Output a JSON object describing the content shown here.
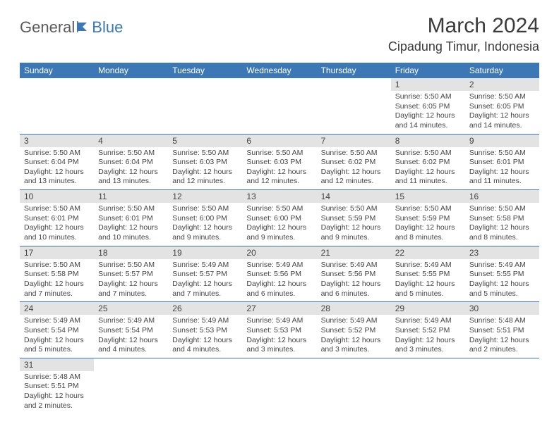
{
  "logo": {
    "text1": "General",
    "text2": "Blue"
  },
  "title": "March 2024",
  "location": "Cipadung Timur, Indonesia",
  "colors": {
    "header_bg": "#3b78b5",
    "header_text": "#ffffff",
    "daynum_bg": "#e3e3e3",
    "border": "#3b78b5",
    "body_text": "#444444",
    "page_bg": "#ffffff"
  },
  "weekdays": [
    "Sunday",
    "Monday",
    "Tuesday",
    "Wednesday",
    "Thursday",
    "Friday",
    "Saturday"
  ],
  "cell_fontsize": 10.5,
  "header_fontsize": 12,
  "title_fontsize": 30,
  "location_fontsize": 18,
  "weeks": [
    [
      null,
      null,
      null,
      null,
      null,
      {
        "n": "1",
        "sunrise": "Sunrise: 5:50 AM",
        "sunset": "Sunset: 6:05 PM",
        "day1": "Daylight: 12 hours",
        "day2": "and 14 minutes."
      },
      {
        "n": "2",
        "sunrise": "Sunrise: 5:50 AM",
        "sunset": "Sunset: 6:05 PM",
        "day1": "Daylight: 12 hours",
        "day2": "and 14 minutes."
      }
    ],
    [
      {
        "n": "3",
        "sunrise": "Sunrise: 5:50 AM",
        "sunset": "Sunset: 6:04 PM",
        "day1": "Daylight: 12 hours",
        "day2": "and 13 minutes."
      },
      {
        "n": "4",
        "sunrise": "Sunrise: 5:50 AM",
        "sunset": "Sunset: 6:04 PM",
        "day1": "Daylight: 12 hours",
        "day2": "and 13 minutes."
      },
      {
        "n": "5",
        "sunrise": "Sunrise: 5:50 AM",
        "sunset": "Sunset: 6:03 PM",
        "day1": "Daylight: 12 hours",
        "day2": "and 12 minutes."
      },
      {
        "n": "6",
        "sunrise": "Sunrise: 5:50 AM",
        "sunset": "Sunset: 6:03 PM",
        "day1": "Daylight: 12 hours",
        "day2": "and 12 minutes."
      },
      {
        "n": "7",
        "sunrise": "Sunrise: 5:50 AM",
        "sunset": "Sunset: 6:02 PM",
        "day1": "Daylight: 12 hours",
        "day2": "and 12 minutes."
      },
      {
        "n": "8",
        "sunrise": "Sunrise: 5:50 AM",
        "sunset": "Sunset: 6:02 PM",
        "day1": "Daylight: 12 hours",
        "day2": "and 11 minutes."
      },
      {
        "n": "9",
        "sunrise": "Sunrise: 5:50 AM",
        "sunset": "Sunset: 6:01 PM",
        "day1": "Daylight: 12 hours",
        "day2": "and 11 minutes."
      }
    ],
    [
      {
        "n": "10",
        "sunrise": "Sunrise: 5:50 AM",
        "sunset": "Sunset: 6:01 PM",
        "day1": "Daylight: 12 hours",
        "day2": "and 10 minutes."
      },
      {
        "n": "11",
        "sunrise": "Sunrise: 5:50 AM",
        "sunset": "Sunset: 6:01 PM",
        "day1": "Daylight: 12 hours",
        "day2": "and 10 minutes."
      },
      {
        "n": "12",
        "sunrise": "Sunrise: 5:50 AM",
        "sunset": "Sunset: 6:00 PM",
        "day1": "Daylight: 12 hours",
        "day2": "and 9 minutes."
      },
      {
        "n": "13",
        "sunrise": "Sunrise: 5:50 AM",
        "sunset": "Sunset: 6:00 PM",
        "day1": "Daylight: 12 hours",
        "day2": "and 9 minutes."
      },
      {
        "n": "14",
        "sunrise": "Sunrise: 5:50 AM",
        "sunset": "Sunset: 5:59 PM",
        "day1": "Daylight: 12 hours",
        "day2": "and 9 minutes."
      },
      {
        "n": "15",
        "sunrise": "Sunrise: 5:50 AM",
        "sunset": "Sunset: 5:59 PM",
        "day1": "Daylight: 12 hours",
        "day2": "and 8 minutes."
      },
      {
        "n": "16",
        "sunrise": "Sunrise: 5:50 AM",
        "sunset": "Sunset: 5:58 PM",
        "day1": "Daylight: 12 hours",
        "day2": "and 8 minutes."
      }
    ],
    [
      {
        "n": "17",
        "sunrise": "Sunrise: 5:50 AM",
        "sunset": "Sunset: 5:58 PM",
        "day1": "Daylight: 12 hours",
        "day2": "and 7 minutes."
      },
      {
        "n": "18",
        "sunrise": "Sunrise: 5:50 AM",
        "sunset": "Sunset: 5:57 PM",
        "day1": "Daylight: 12 hours",
        "day2": "and 7 minutes."
      },
      {
        "n": "19",
        "sunrise": "Sunrise: 5:49 AM",
        "sunset": "Sunset: 5:57 PM",
        "day1": "Daylight: 12 hours",
        "day2": "and 7 minutes."
      },
      {
        "n": "20",
        "sunrise": "Sunrise: 5:49 AM",
        "sunset": "Sunset: 5:56 PM",
        "day1": "Daylight: 12 hours",
        "day2": "and 6 minutes."
      },
      {
        "n": "21",
        "sunrise": "Sunrise: 5:49 AM",
        "sunset": "Sunset: 5:56 PM",
        "day1": "Daylight: 12 hours",
        "day2": "and 6 minutes."
      },
      {
        "n": "22",
        "sunrise": "Sunrise: 5:49 AM",
        "sunset": "Sunset: 5:55 PM",
        "day1": "Daylight: 12 hours",
        "day2": "and 5 minutes."
      },
      {
        "n": "23",
        "sunrise": "Sunrise: 5:49 AM",
        "sunset": "Sunset: 5:55 PM",
        "day1": "Daylight: 12 hours",
        "day2": "and 5 minutes."
      }
    ],
    [
      {
        "n": "24",
        "sunrise": "Sunrise: 5:49 AM",
        "sunset": "Sunset: 5:54 PM",
        "day1": "Daylight: 12 hours",
        "day2": "and 5 minutes."
      },
      {
        "n": "25",
        "sunrise": "Sunrise: 5:49 AM",
        "sunset": "Sunset: 5:54 PM",
        "day1": "Daylight: 12 hours",
        "day2": "and 4 minutes."
      },
      {
        "n": "26",
        "sunrise": "Sunrise: 5:49 AM",
        "sunset": "Sunset: 5:53 PM",
        "day1": "Daylight: 12 hours",
        "day2": "and 4 minutes."
      },
      {
        "n": "27",
        "sunrise": "Sunrise: 5:49 AM",
        "sunset": "Sunset: 5:53 PM",
        "day1": "Daylight: 12 hours",
        "day2": "and 3 minutes."
      },
      {
        "n": "28",
        "sunrise": "Sunrise: 5:49 AM",
        "sunset": "Sunset: 5:52 PM",
        "day1": "Daylight: 12 hours",
        "day2": "and 3 minutes."
      },
      {
        "n": "29",
        "sunrise": "Sunrise: 5:49 AM",
        "sunset": "Sunset: 5:52 PM",
        "day1": "Daylight: 12 hours",
        "day2": "and 3 minutes."
      },
      {
        "n": "30",
        "sunrise": "Sunrise: 5:48 AM",
        "sunset": "Sunset: 5:51 PM",
        "day1": "Daylight: 12 hours",
        "day2": "and 2 minutes."
      }
    ],
    [
      {
        "n": "31",
        "sunrise": "Sunrise: 5:48 AM",
        "sunset": "Sunset: 5:51 PM",
        "day1": "Daylight: 12 hours",
        "day2": "and 2 minutes."
      },
      null,
      null,
      null,
      null,
      null,
      null
    ]
  ]
}
